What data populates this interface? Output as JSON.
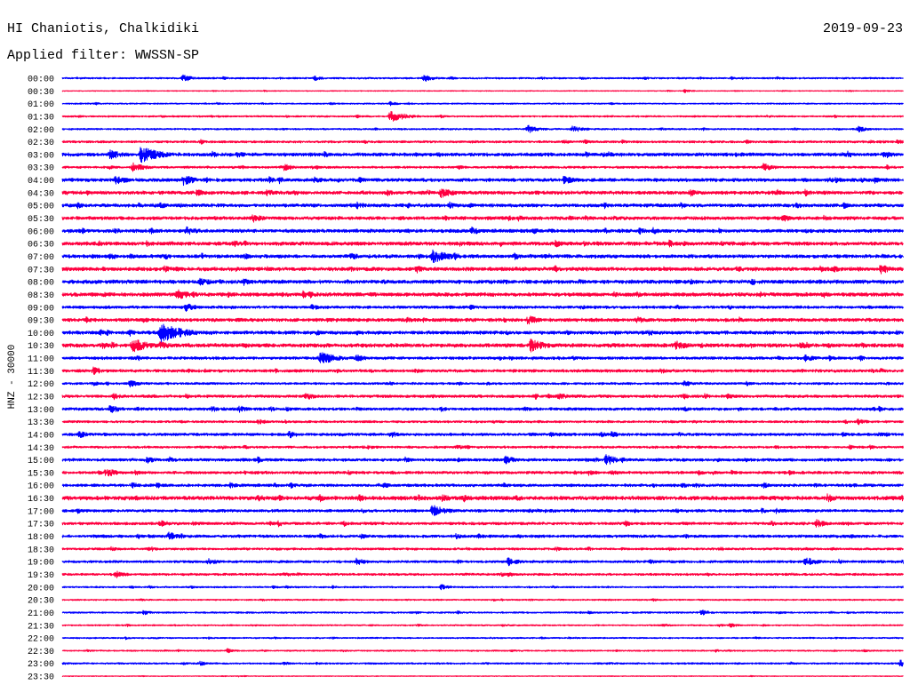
{
  "chart_data": {
    "type": "line",
    "title": "HI Chaniotis, Chalkidiki",
    "date": "2019-09-23",
    "filter": "Applied filter: WWSSN-SP",
    "ylabel": "HNZ - 30000",
    "xlim": [
      0,
      30
    ],
    "grid": false,
    "series_colors": [
      "#0000ff",
      "#ff0040"
    ],
    "rows": [
      {
        "time": "00:00",
        "noise": 0.06,
        "events": [
          [
            4.3,
            0.3
          ],
          [
            9.0,
            0.2
          ],
          [
            12.9,
            0.3
          ],
          [
            18.5,
            0.15
          ]
        ]
      },
      {
        "time": "00:30",
        "noise": 0.03,
        "events": [
          [
            22.2,
            0.15
          ]
        ]
      },
      {
        "time": "01:00",
        "noise": 0.05,
        "events": [
          [
            1.2,
            0.12
          ],
          [
            11.7,
            0.18
          ]
        ]
      },
      {
        "time": "01:30",
        "noise": 0.06,
        "events": [
          [
            10.5,
            0.15
          ],
          [
            11.7,
            0.5
          ],
          [
            13.5,
            0.15
          ]
        ]
      },
      {
        "time": "02:00",
        "noise": 0.06,
        "events": [
          [
            16.6,
            0.35
          ],
          [
            18.2,
            0.3
          ],
          [
            28.4,
            0.25
          ]
        ]
      },
      {
        "time": "02:30",
        "noise": 0.08,
        "events": [
          [
            10.8,
            0.15
          ],
          [
            29.8,
            0.2
          ]
        ]
      },
      {
        "time": "03:00",
        "noise": 0.12,
        "events": [
          [
            1.7,
            0.45
          ],
          [
            2.8,
            0.7
          ],
          [
            6.2,
            0.3
          ],
          [
            14.5,
            0.15
          ],
          [
            20.8,
            0.15
          ]
        ]
      },
      {
        "time": "03:30",
        "noise": 0.08,
        "events": [
          [
            2.5,
            0.4
          ],
          [
            7.9,
            0.3
          ],
          [
            16.0,
            0.15
          ],
          [
            25.0,
            0.35
          ]
        ]
      },
      {
        "time": "04:00",
        "noise": 0.12,
        "events": [
          [
            1.9,
            0.4
          ],
          [
            4.3,
            0.45
          ],
          [
            9.0,
            0.3
          ],
          [
            17.9,
            0.35
          ],
          [
            27.6,
            0.25
          ]
        ]
      },
      {
        "time": "04:30",
        "noise": 0.12,
        "events": [
          [
            0.9,
            0.25
          ],
          [
            4.8,
            0.3
          ],
          [
            7.3,
            0.3
          ],
          [
            13.5,
            0.45
          ],
          [
            22.4,
            0.3
          ]
        ]
      },
      {
        "time": "05:00",
        "noise": 0.12,
        "events": [
          [
            3.5,
            0.25
          ],
          [
            10.5,
            0.3
          ],
          [
            26.2,
            0.25
          ]
        ]
      },
      {
        "time": "05:30",
        "noise": 0.12,
        "events": [
          [
            6.8,
            0.35
          ],
          [
            25.7,
            0.3
          ]
        ]
      },
      {
        "time": "06:00",
        "noise": 0.12,
        "events": [
          [
            4.4,
            0.4
          ],
          [
            14.6,
            0.35
          ],
          [
            16.8,
            0.25
          ]
        ]
      },
      {
        "time": "06:30",
        "noise": 0.13,
        "events": [
          [
            6.5,
            0.25
          ],
          [
            17.6,
            0.3
          ]
        ]
      },
      {
        "time": "07:00",
        "noise": 0.12,
        "events": [
          [
            1.7,
            0.3
          ],
          [
            13.2,
            0.6
          ],
          [
            14.0,
            0.3
          ]
        ]
      },
      {
        "time": "07:30",
        "noise": 0.13,
        "events": [
          [
            3.6,
            0.3
          ],
          [
            7.3,
            0.25
          ],
          [
            29.2,
            0.4
          ]
        ]
      },
      {
        "time": "08:00",
        "noise": 0.13,
        "events": [
          [
            4.9,
            0.3
          ],
          [
            24.6,
            0.3
          ]
        ]
      },
      {
        "time": "08:30",
        "noise": 0.13,
        "events": [
          [
            4.1,
            0.45
          ],
          [
            18.5,
            0.2
          ]
        ]
      },
      {
        "time": "09:00",
        "noise": 0.1,
        "events": [
          [
            4.4,
            0.35
          ],
          [
            8.9,
            0.25
          ],
          [
            23.8,
            0.2
          ]
        ]
      },
      {
        "time": "09:30",
        "noise": 0.12,
        "events": [
          [
            16.6,
            0.4
          ],
          [
            20.5,
            0.3
          ]
        ]
      },
      {
        "time": "10:00",
        "noise": 0.12,
        "events": [
          [
            3.5,
            0.85
          ],
          [
            10.5,
            0.2
          ],
          [
            18.0,
            0.2
          ]
        ]
      },
      {
        "time": "10:30",
        "noise": 0.13,
        "events": [
          [
            2.5,
            0.6
          ],
          [
            3.5,
            0.35
          ],
          [
            16.7,
            0.55
          ],
          [
            21.9,
            0.4
          ]
        ]
      },
      {
        "time": "11:00",
        "noise": 0.1,
        "events": [
          [
            9.2,
            0.6
          ],
          [
            10.5,
            0.3
          ],
          [
            26.5,
            0.3
          ]
        ]
      },
      {
        "time": "11:30",
        "noise": 0.1,
        "events": [
          [
            1.1,
            0.35
          ],
          [
            7.6,
            0.2
          ]
        ]
      },
      {
        "time": "12:00",
        "noise": 0.08,
        "events": [
          [
            2.4,
            0.3
          ],
          [
            22.2,
            0.25
          ]
        ]
      },
      {
        "time": "12:30",
        "noise": 0.1,
        "events": [
          [
            1.8,
            0.3
          ],
          [
            8.7,
            0.3
          ],
          [
            17.7,
            0.3
          ],
          [
            23.7,
            0.25
          ]
        ]
      },
      {
        "time": "13:00",
        "noise": 0.1,
        "events": [
          [
            1.7,
            0.35
          ],
          [
            6.3,
            0.3
          ],
          [
            13.5,
            0.25
          ]
        ]
      },
      {
        "time": "13:30",
        "noise": 0.08,
        "events": [
          [
            7.0,
            0.25
          ],
          [
            28.4,
            0.25
          ]
        ]
      },
      {
        "time": "14:00",
        "noise": 0.1,
        "events": [
          [
            0.6,
            0.3
          ],
          [
            8.1,
            0.3
          ],
          [
            11.7,
            0.3
          ],
          [
            19.6,
            0.25
          ]
        ]
      },
      {
        "time": "14:30",
        "noise": 0.08,
        "events": [
          [
            10.9,
            0.2
          ],
          [
            14.1,
            0.2
          ]
        ]
      },
      {
        "time": "15:00",
        "noise": 0.1,
        "events": [
          [
            3.0,
            0.3
          ],
          [
            15.8,
            0.35
          ],
          [
            19.4,
            0.45
          ]
        ]
      },
      {
        "time": "15:30",
        "noise": 0.1,
        "events": [
          [
            1.6,
            0.35
          ],
          [
            19.6,
            0.25
          ]
        ]
      },
      {
        "time": "16:00",
        "noise": 0.1,
        "events": [
          [
            2.5,
            0.25
          ],
          [
            6.0,
            0.25
          ],
          [
            25.0,
            0.25
          ]
        ]
      },
      {
        "time": "16:30",
        "noise": 0.14,
        "events": [
          [
            7.0,
            0.3
          ],
          [
            13.6,
            0.3
          ],
          [
            16.2,
            0.25
          ],
          [
            27.3,
            0.35
          ]
        ]
      },
      {
        "time": "17:00",
        "noise": 0.1,
        "events": [
          [
            13.2,
            0.5
          ],
          [
            20.4,
            0.2
          ]
        ]
      },
      {
        "time": "17:30",
        "noise": 0.1,
        "events": [
          [
            3.5,
            0.3
          ],
          [
            26.9,
            0.35
          ]
        ]
      },
      {
        "time": "18:00",
        "noise": 0.1,
        "events": [
          [
            3.8,
            0.35
          ]
        ]
      },
      {
        "time": "18:30",
        "noise": 0.08,
        "events": [
          [
            3.2,
            0.2
          ]
        ]
      },
      {
        "time": "19:00",
        "noise": 0.09,
        "events": [
          [
            5.2,
            0.3
          ],
          [
            10.5,
            0.3
          ],
          [
            15.9,
            0.35
          ],
          [
            26.5,
            0.4
          ]
        ]
      },
      {
        "time": "19:30",
        "noise": 0.08,
        "events": [
          [
            1.9,
            0.3
          ],
          [
            15.9,
            0.2
          ]
        ]
      },
      {
        "time": "20:00",
        "noise": 0.06,
        "events": [
          [
            13.5,
            0.25
          ]
        ]
      },
      {
        "time": "20:30",
        "noise": 0.05,
        "events": []
      },
      {
        "time": "21:00",
        "noise": 0.06,
        "events": [
          [
            2.9,
            0.2
          ],
          [
            22.8,
            0.25
          ]
        ]
      },
      {
        "time": "21:30",
        "noise": 0.05,
        "events": [
          [
            23.8,
            0.2
          ]
        ]
      },
      {
        "time": "22:00",
        "noise": 0.05,
        "events": []
      },
      {
        "time": "22:30",
        "noise": 0.05,
        "events": [
          [
            5.9,
            0.2
          ]
        ]
      },
      {
        "time": "23:00",
        "noise": 0.06,
        "events": [
          [
            4.9,
            0.2
          ],
          [
            29.9,
            0.3
          ]
        ]
      },
      {
        "time": "23:30",
        "noise": 0.03,
        "events": []
      }
    ]
  }
}
